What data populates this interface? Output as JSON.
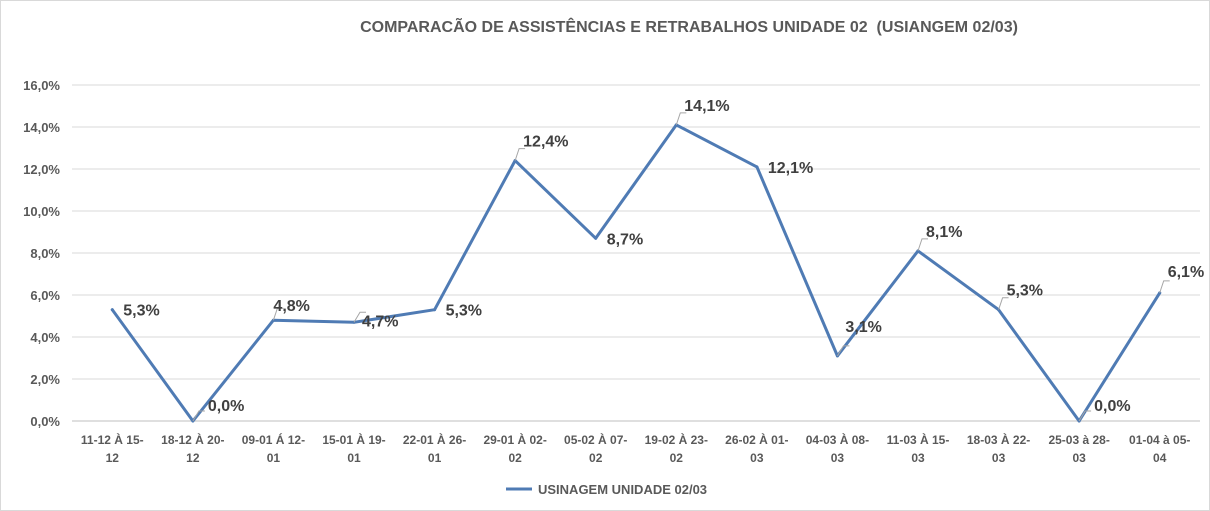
{
  "chart_data": {
    "type": "line",
    "title": "COMPARACÃO DE ASSISTÊNCIAS E RETRABALHOS UNIDADE 02  (USIANGEM 02/03)",
    "xlabel": "",
    "ylabel": "",
    "ylim": [
      0,
      16
    ],
    "yticks": [
      "0,0%",
      "2,0%",
      "4,0%",
      "6,0%",
      "8,0%",
      "10,0%",
      "12,0%",
      "14,0%",
      "16,0%"
    ],
    "grid": true,
    "legend": "bottom",
    "categories": [
      [
        "11-12 À 15-",
        "12"
      ],
      [
        "18-12 À 20-",
        "12"
      ],
      [
        "09-01 Á 12-",
        "01"
      ],
      [
        "15-01 À 19-",
        "01"
      ],
      [
        "22-01 À 26-",
        "01"
      ],
      [
        "29-01 À 02-",
        "02"
      ],
      [
        "05-02 À 07-",
        "02"
      ],
      [
        "19-02 À 23-",
        "02"
      ],
      [
        "26-02 À 01-",
        "03"
      ],
      [
        "04-03 À 08-",
        "03"
      ],
      [
        "11-03 À 15-",
        "03"
      ],
      [
        "18-03 À 22-",
        "03"
      ],
      [
        "25-03 à 28-",
        "03"
      ],
      [
        "01-04 à 05-",
        "04"
      ]
    ],
    "series": [
      {
        "name": "USINAGEM UNIDADE 02/03",
        "color": "#4f7bb4",
        "values": [
          5.3,
          0.0,
          4.8,
          4.7,
          5.3,
          12.4,
          8.7,
          14.1,
          12.1,
          3.1,
          8.1,
          5.3,
          0.0,
          6.1
        ],
        "labels": [
          "5,3%",
          "0,0%",
          "4,8%",
          "4,7%",
          "5,3%",
          "12,4%",
          "8,7%",
          "14,1%",
          "12,1%",
          "3,1%",
          "8,1%",
          "5,3%",
          "0,0%",
          "6,1%"
        ]
      }
    ]
  }
}
